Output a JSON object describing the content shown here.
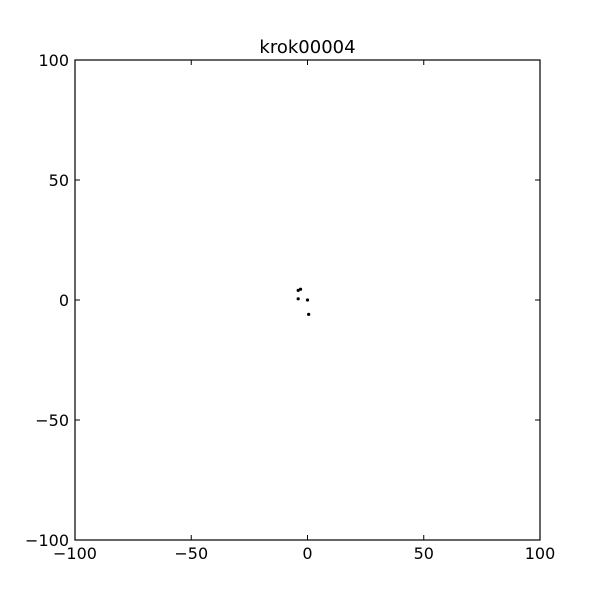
{
  "chart_data": {
    "type": "scatter",
    "title": "krok00004",
    "xlim": [
      -100,
      100
    ],
    "ylim": [
      -100,
      100
    ],
    "x_ticks": [
      -100,
      -50,
      0,
      50,
      100
    ],
    "y_ticks": [
      -100,
      -50,
      0,
      50,
      100
    ],
    "x_tick_labels": [
      "−100",
      "−50",
      "0",
      "50",
      "100"
    ],
    "y_tick_labels": [
      "−100",
      "−50",
      "0",
      "50",
      "100"
    ],
    "grid": false,
    "marker_color": "#000000",
    "points": [
      {
        "x": -4,
        "y": 4
      },
      {
        "x": -3,
        "y": 4.5
      },
      {
        "x": -4,
        "y": 0.5
      },
      {
        "x": 0,
        "y": 0
      },
      {
        "x": 0.5,
        "y": -6
      }
    ]
  }
}
